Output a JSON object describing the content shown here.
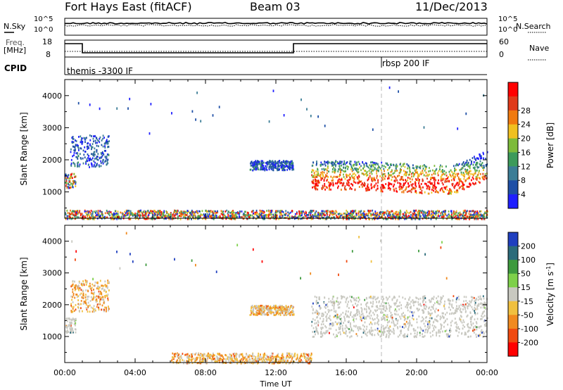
{
  "header": {
    "station": "Fort Hays East (fitACF)",
    "beam": "Beam 03",
    "date": "11/Dec/2013"
  },
  "top_panels": {
    "nsky_label": "N.Sky",
    "nsearch_label": "N.Search",
    "noise_ticks_left": [
      "10^5",
      "10^0"
    ],
    "noise_ticks_right": [
      "10^5",
      "10^0"
    ],
    "freq_label_1": "Freq.",
    "freq_label_2": "[MHz]",
    "freq_ticks": [
      "18",
      "8"
    ],
    "nave_label": "Nave",
    "nave_ticks": [
      "60",
      "0"
    ],
    "cpid_label": "CPID",
    "cpid_segments": [
      {
        "name": "themis -3300 IF",
        "start_hour": 0
      },
      {
        "name": "rbsp 200 IF",
        "start_hour": 18
      }
    ]
  },
  "chart_data": [
    {
      "type": "heatmap",
      "name": "Power",
      "ylabel": "Slant Range [km]",
      "xlabel": "Time UT",
      "x_range_hours": [
        0,
        24
      ],
      "ylim": [
        180,
        4500
      ],
      "x_tick_labels": [
        "00:00",
        "04:00",
        "08:00",
        "12:00",
        "16:00",
        "20:00",
        "00:00"
      ],
      "y_tick_labels": [
        "1000",
        "2000",
        "3000",
        "4000"
      ],
      "colorbar": {
        "label": "Power [dB]",
        "tick_labels": [
          "4",
          "8",
          "12",
          "16",
          "20",
          "24",
          "28"
        ],
        "colors": [
          "#1f1fff",
          "#1e4fa6",
          "#3b7d96",
          "#3c9a5a",
          "#7dbb3a",
          "#f0c020",
          "#f07a10",
          "#e03a1a",
          "#ff0000"
        ]
      },
      "features": [
        {
          "hours": [
            0,
            0.6
          ],
          "range_km": [
            1150,
            1600
          ],
          "power_db": [
            16,
            24
          ]
        },
        {
          "hours": [
            0.3,
            2.5
          ],
          "range_km": [
            1800,
            2800
          ],
          "power_db": [
            4,
            12
          ]
        },
        {
          "hours": [
            10.5,
            13
          ],
          "range_km": [
            1700,
            2000
          ],
          "power_db": [
            4,
            12
          ]
        },
        {
          "hours": [
            14,
            24
          ],
          "range_km": [
            1000,
            2500
          ],
          "power_db": [
            4,
            28
          ]
        },
        {
          "hours": [
            0,
            24
          ],
          "range_km": [
            180,
            450
          ],
          "power_db": [
            4,
            28
          ]
        }
      ]
    },
    {
      "type": "heatmap",
      "name": "Velocity",
      "ylabel": "Slant Range [km]",
      "xlabel": "Time UT",
      "x_range_hours": [
        0,
        24
      ],
      "ylim": [
        180,
        4500
      ],
      "x_tick_labels": [
        "00:00",
        "04:00",
        "08:00",
        "12:00",
        "16:00",
        "20:00",
        "00:00"
      ],
      "y_tick_labels": [
        "1000",
        "2000",
        "3000",
        "4000"
      ],
      "colorbar": {
        "label": "Velocity [m s^-1]",
        "tick_labels": [
          "200",
          "100",
          "50",
          "15",
          "-15",
          "-50",
          "-100",
          "-200"
        ],
        "colors": [
          "#1f3fbf",
          "#2b6b7a",
          "#3e9a3e",
          "#7ed04a",
          "#c8c8c0",
          "#f0c040",
          "#f08a20",
          "#f04a10",
          "#ff0000"
        ]
      },
      "features": [
        {
          "hours": [
            0,
            0.6
          ],
          "range_km": [
            1150,
            1600
          ],
          "velocity": [
            -15,
            15
          ]
        },
        {
          "hours": [
            0.3,
            2.5
          ],
          "range_km": [
            1800,
            2800
          ],
          "velocity": [
            -50,
            15
          ]
        },
        {
          "hours": [
            10.5,
            13
          ],
          "range_km": [
            1700,
            2000
          ],
          "velocity": [
            -100,
            -15
          ]
        },
        {
          "hours": [
            14,
            24
          ],
          "range_km": [
            1000,
            2300
          ],
          "velocity": [
            -15,
            15
          ]
        },
        {
          "hours": [
            6,
            14
          ],
          "range_km": [
            180,
            500
          ],
          "velocity": [
            -100,
            -15
          ]
        }
      ]
    }
  ]
}
